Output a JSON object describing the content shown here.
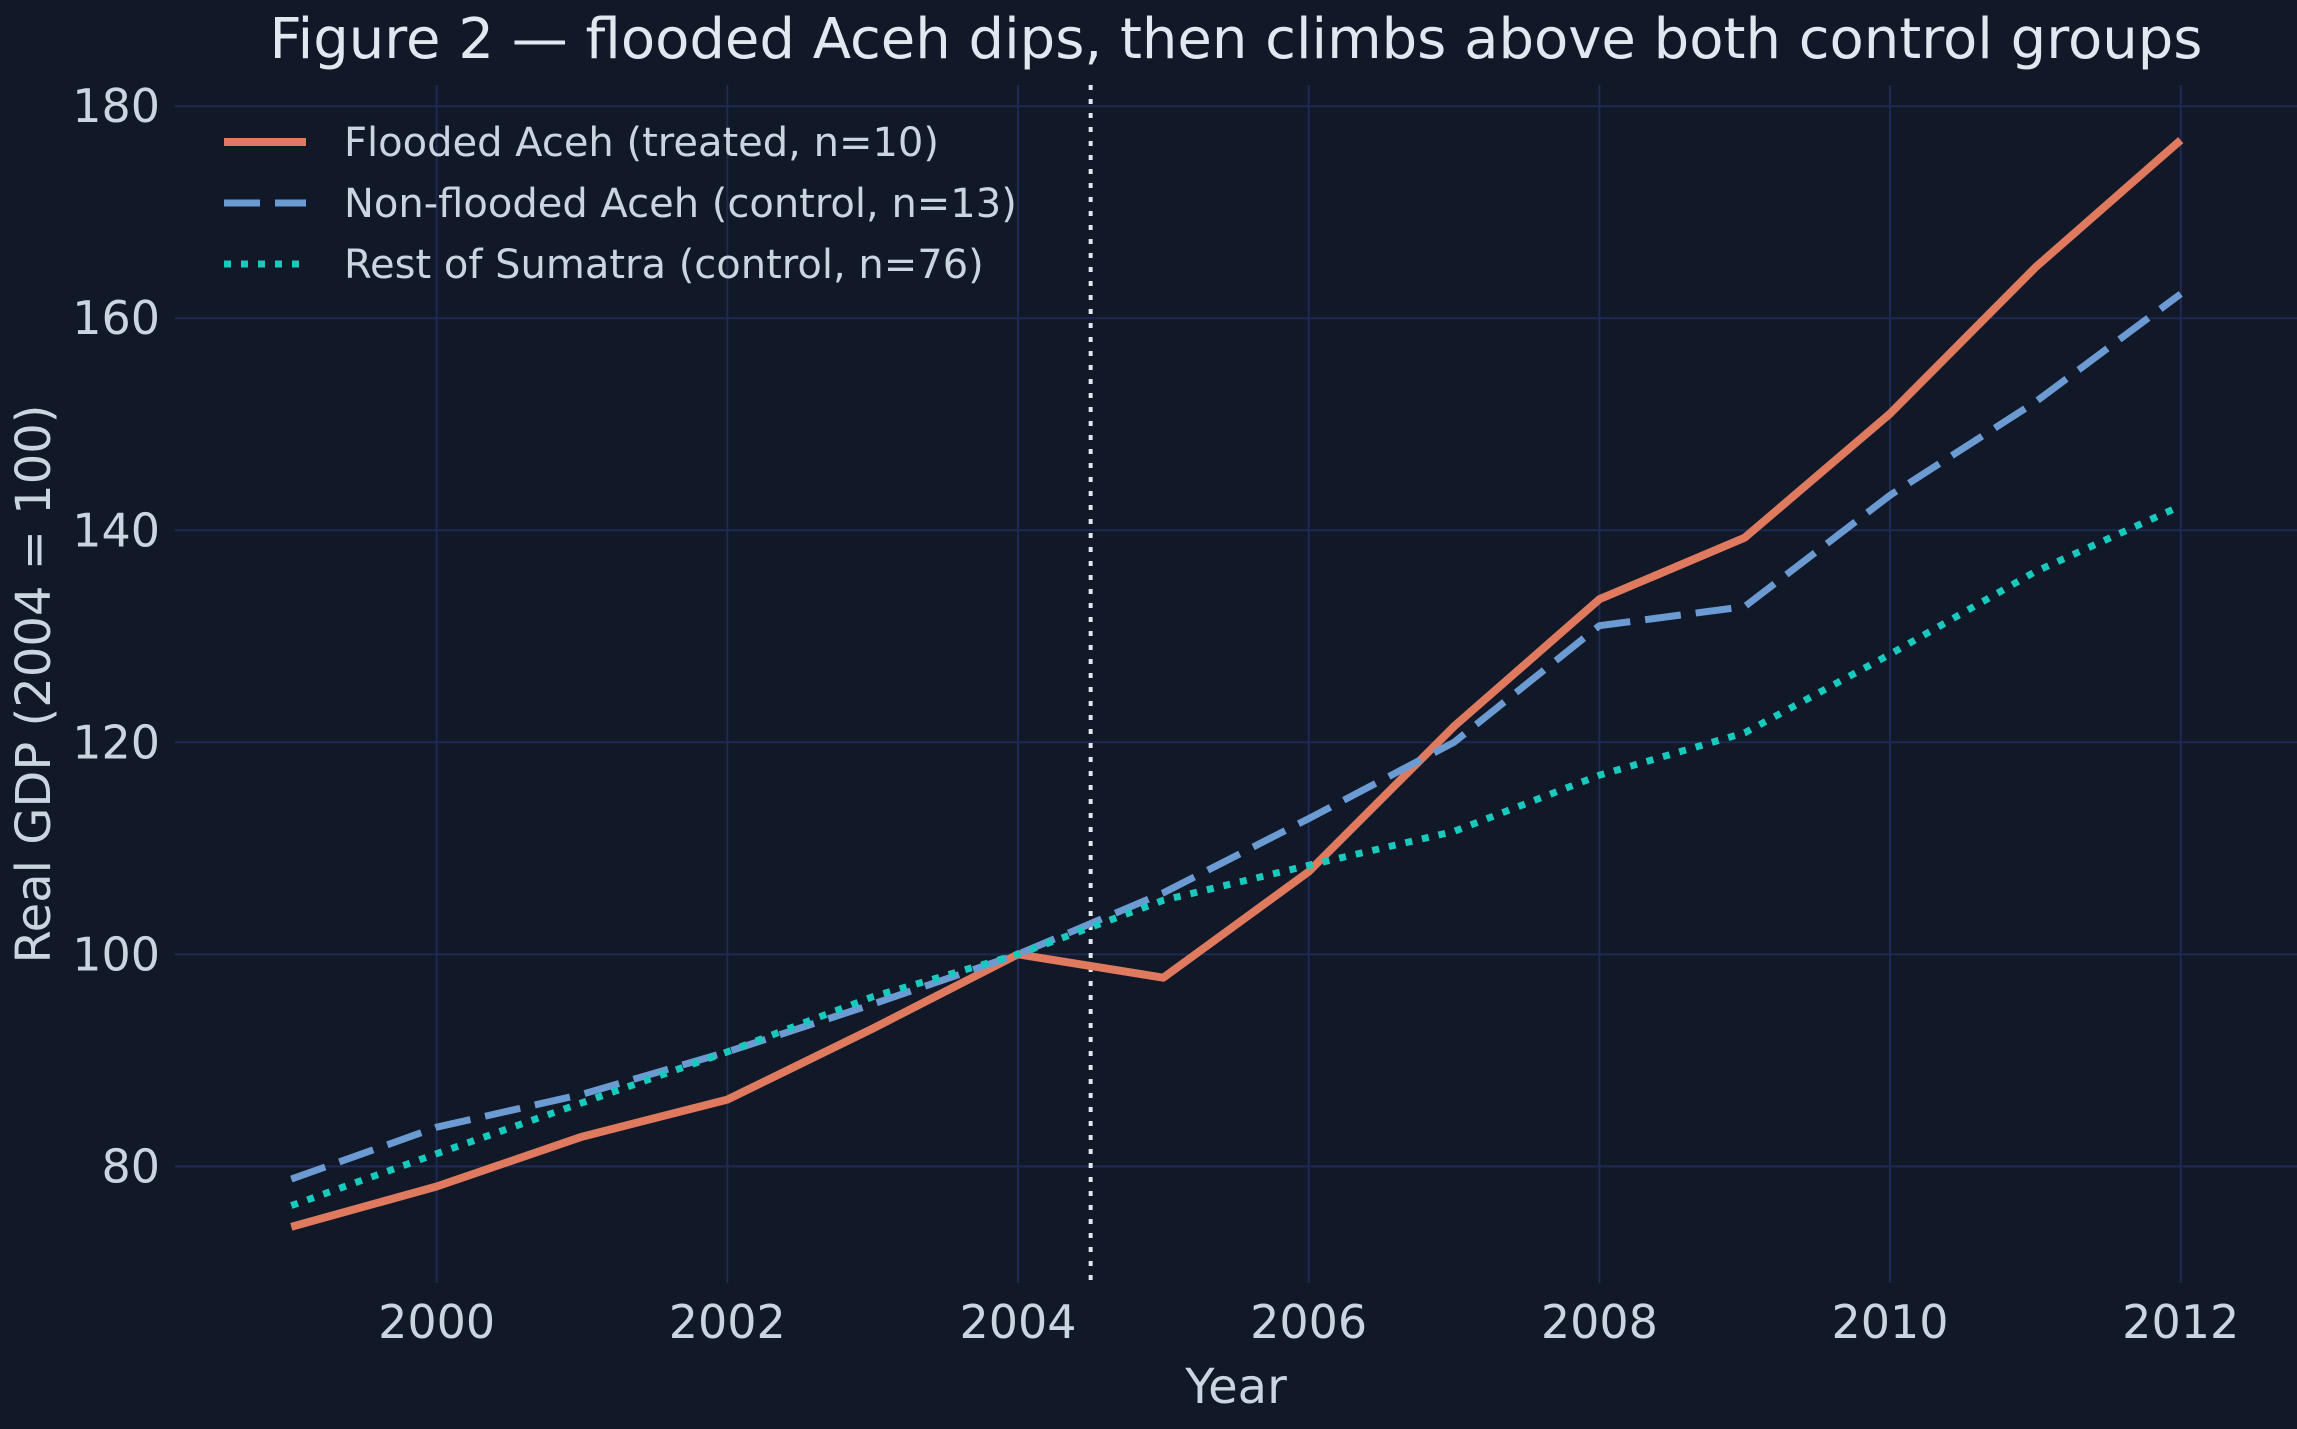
{
  "chart_data": {
    "type": "line",
    "title": "Figure 2 — flooded Aceh dips, then climbs above both control groups",
    "xlabel": "Year",
    "ylabel": "Real GDP (2004 = 100)",
    "xlim": [
      1998.2,
      2012.8
    ],
    "ylim": [
      69,
      182
    ],
    "xticks": [
      2000,
      2002,
      2004,
      2006,
      2008,
      2010,
      2012
    ],
    "yticks": [
      80,
      100,
      120,
      140,
      160,
      180
    ],
    "grid": true,
    "legend_position": "upper-left",
    "reference_line": {
      "x": 2004.5,
      "style": "dotted",
      "color": "#e2e8f0"
    },
    "x": [
      1999,
      2000,
      2001,
      2002,
      2003,
      2004,
      2005,
      2006,
      2007,
      2008,
      2009,
      2010,
      2011,
      2012
    ],
    "series": [
      {
        "name": "Flooded Aceh (treated, n=10)",
        "style": "solid",
        "color": "#e07a5f",
        "values": [
          74.3,
          78.1,
          82.8,
          86.3,
          93.0,
          100.0,
          97.8,
          107.8,
          121.5,
          133.5,
          139.3,
          151.0,
          164.8,
          176.8
        ]
      },
      {
        "name": "Non-flooded Aceh (control, n=13)",
        "style": "dashed",
        "color": "#6b9bd2",
        "values": [
          78.8,
          83.7,
          86.8,
          90.8,
          95.3,
          100.0,
          105.8,
          112.8,
          120.0,
          131.0,
          132.8,
          143.3,
          152.1,
          162.3
        ]
      },
      {
        "name": "Rest of Sumatra (control, n=76)",
        "style": "dotted",
        "color": "#19c9bd",
        "values": [
          76.3,
          81.2,
          86.0,
          90.8,
          96.0,
          100.0,
          105.1,
          108.4,
          111.6,
          116.9,
          120.9,
          128.3,
          136.1,
          142.3
        ]
      }
    ]
  }
}
